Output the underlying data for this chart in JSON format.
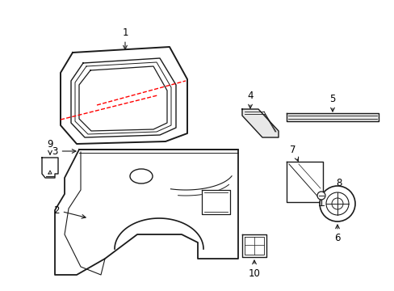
{
  "bg_color": "#ffffff",
  "line_color": "#1a1a1a",
  "red_dash_color": "#ff0000",
  "label_color": "#000000",
  "figsize": [
    4.89,
    3.6
  ],
  "dpi": 100
}
